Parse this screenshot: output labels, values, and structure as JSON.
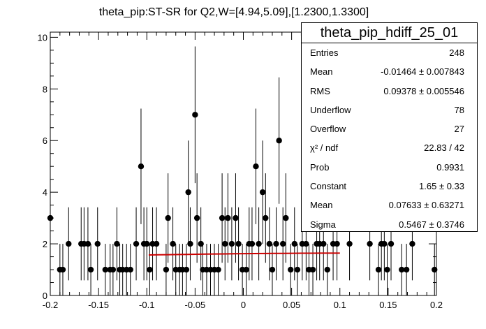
{
  "chart_data": {
    "type": "scatter",
    "title": "theta_pip:ST-SR for Q2,W=[4.94,5.09],[1.2300,1.3300]",
    "xlim": [
      -0.2,
      0.2
    ],
    "ylim": [
      0,
      10.2
    ],
    "x_ticks": [
      "-0.2",
      "-0.15",
      "-0.1",
      "-0.05",
      "0",
      "0.05",
      "0.1",
      "0.15",
      "0.2"
    ],
    "y_ticks": [
      "0",
      "2",
      "4",
      "6",
      "8",
      "10"
    ],
    "points": [
      {
        "x": -0.2,
        "y": 3
      },
      {
        "x": -0.19,
        "y": 1
      },
      {
        "x": -0.187,
        "y": 1
      },
      {
        "x": -0.181,
        "y": 2
      },
      {
        "x": -0.168,
        "y": 2
      },
      {
        "x": -0.165,
        "y": 2
      },
      {
        "x": -0.161,
        "y": 2
      },
      {
        "x": -0.158,
        "y": 1
      },
      {
        "x": -0.151,
        "y": 2
      },
      {
        "x": -0.143,
        "y": 1
      },
      {
        "x": -0.138,
        "y": 1
      },
      {
        "x": -0.135,
        "y": 1
      },
      {
        "x": -0.131,
        "y": 2
      },
      {
        "x": -0.128,
        "y": 1
      },
      {
        "x": -0.125,
        "y": 1
      },
      {
        "x": -0.121,
        "y": 1
      },
      {
        "x": -0.117,
        "y": 1
      },
      {
        "x": -0.111,
        "y": 2
      },
      {
        "x": -0.106,
        "y": 5
      },
      {
        "x": -0.103,
        "y": 2
      },
      {
        "x": -0.1,
        "y": 2
      },
      {
        "x": -0.097,
        "y": 1
      },
      {
        "x": -0.094,
        "y": 2
      },
      {
        "x": -0.09,
        "y": 2
      },
      {
        "x": -0.08,
        "y": 1
      },
      {
        "x": -0.078,
        "y": 3
      },
      {
        "x": -0.073,
        "y": 2
      },
      {
        "x": -0.07,
        "y": 1
      },
      {
        "x": -0.066,
        "y": 1
      },
      {
        "x": -0.063,
        "y": 1
      },
      {
        "x": -0.059,
        "y": 1
      },
      {
        "x": -0.057,
        "y": 4
      },
      {
        "x": -0.055,
        "y": 2
      },
      {
        "x": -0.05,
        "y": 7
      },
      {
        "x": -0.048,
        "y": 3
      },
      {
        "x": -0.044,
        "y": 2
      },
      {
        "x": -0.042,
        "y": 1
      },
      {
        "x": -0.038,
        "y": 1
      },
      {
        "x": -0.034,
        "y": 1
      },
      {
        "x": -0.03,
        "y": 1
      },
      {
        "x": -0.026,
        "y": 1
      },
      {
        "x": -0.022,
        "y": 3
      },
      {
        "x": -0.019,
        "y": 2
      },
      {
        "x": -0.016,
        "y": 3
      },
      {
        "x": -0.012,
        "y": 2
      },
      {
        "x": -0.008,
        "y": 3
      },
      {
        "x": -0.005,
        "y": 2
      },
      {
        "x": -0.001,
        "y": 1
      },
      {
        "x": 0.003,
        "y": 1
      },
      {
        "x": 0.006,
        "y": 2
      },
      {
        "x": 0.009,
        "y": 2
      },
      {
        "x": 0.013,
        "y": 5
      },
      {
        "x": 0.016,
        "y": 2
      },
      {
        "x": 0.02,
        "y": 4
      },
      {
        "x": 0.023,
        "y": 3
      },
      {
        "x": 0.027,
        "y": 2
      },
      {
        "x": 0.03,
        "y": 1
      },
      {
        "x": 0.034,
        "y": 2
      },
      {
        "x": 0.037,
        "y": 6
      },
      {
        "x": 0.041,
        "y": 2
      },
      {
        "x": 0.044,
        "y": 3
      },
      {
        "x": 0.049,
        "y": 1
      },
      {
        "x": 0.053,
        "y": 2
      },
      {
        "x": 0.056,
        "y": 1
      },
      {
        "x": 0.061,
        "y": 2
      },
      {
        "x": 0.065,
        "y": 2
      },
      {
        "x": 0.068,
        "y": 1
      },
      {
        "x": 0.072,
        "y": 1
      },
      {
        "x": 0.076,
        "y": 2
      },
      {
        "x": 0.079,
        "y": 2
      },
      {
        "x": 0.083,
        "y": 2
      },
      {
        "x": 0.087,
        "y": 1
      },
      {
        "x": 0.093,
        "y": 2
      },
      {
        "x": 0.097,
        "y": 2
      },
      {
        "x": 0.11,
        "y": 2
      },
      {
        "x": 0.131,
        "y": 2
      },
      {
        "x": 0.14,
        "y": 1
      },
      {
        "x": 0.143,
        "y": 2
      },
      {
        "x": 0.146,
        "y": 2
      },
      {
        "x": 0.149,
        "y": 1
      },
      {
        "x": 0.153,
        "y": 2
      },
      {
        "x": 0.164,
        "y": 1
      },
      {
        "x": 0.169,
        "y": 1
      },
      {
        "x": 0.175,
        "y": 2
      },
      {
        "x": 0.198,
        "y": 1
      }
    ],
    "fit": {
      "x_start": -0.098,
      "x_end": 0.1,
      "y_start": 1.57,
      "y_end": 1.64,
      "color": "#cc0000"
    },
    "marker_color": "#000000"
  },
  "stats": {
    "title": "theta_pip_hdiff_25_01",
    "rows": [
      {
        "label": "Entries",
        "value": "248"
      },
      {
        "label": "Mean",
        "value": "-0.01464 ± 0.007843"
      },
      {
        "label": "RMS",
        "value": "0.09378 ± 0.005546"
      },
      {
        "label": "Underflow",
        "value": "78"
      },
      {
        "label": "Overflow",
        "value": "27"
      },
      {
        "label": "χ² / ndf",
        "value": "22.83 / 42"
      },
      {
        "label": "Prob",
        "value": "0.9931"
      },
      {
        "label": "Constant",
        "value": "1.65 ± 0.33"
      },
      {
        "label": "Mean",
        "value": "0.07633 ± 0.63271"
      },
      {
        "label": "Sigma",
        "value": "0.5467 ± 0.3746"
      }
    ]
  }
}
